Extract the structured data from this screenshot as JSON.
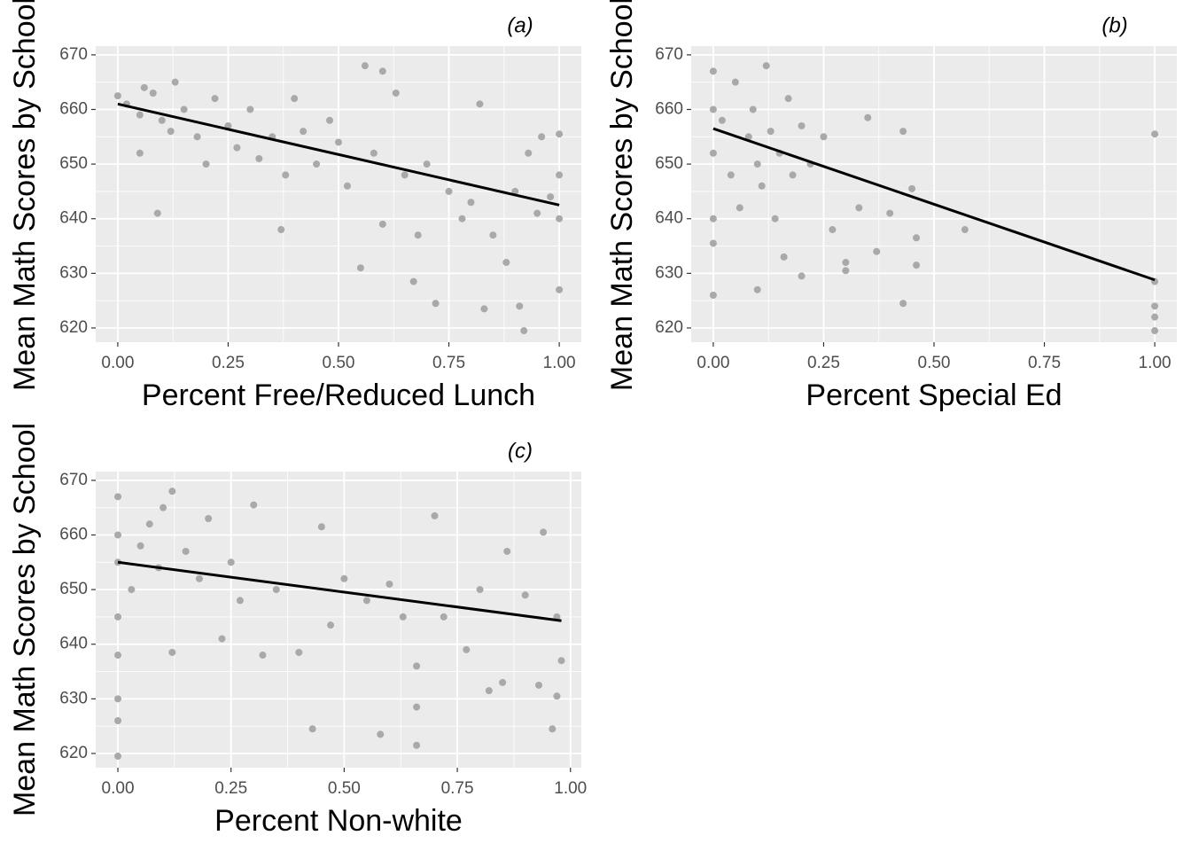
{
  "chart_data": [
    {
      "type": "scatter",
      "title": "(a)",
      "x_label": "Percent Free/Reduced Lunch",
      "y_label": "Mean Math Scores by School",
      "x": [
        0,
        0.02,
        0.05,
        0.06,
        0.08,
        0.05,
        0.09,
        0.1,
        0.12,
        0.13,
        0.15,
        0.18,
        0.2,
        0.22,
        0.25,
        0.27,
        0.3,
        0.32,
        0.35,
        0.37,
        0.38,
        0.4,
        0.42,
        0.45,
        0.48,
        0.5,
        0.52,
        0.55,
        0.56,
        0.58,
        0.6,
        0.6,
        0.63,
        0.65,
        0.67,
        0.68,
        0.7,
        0.72,
        0.75,
        0.78,
        0.8,
        0.82,
        0.83,
        0.85,
        0.88,
        0.9,
        0.91,
        0.92,
        0.93,
        0.95,
        0.96,
        0.98,
        1,
        1,
        1,
        1
      ],
      "values": [
        662.5,
        661,
        659,
        664,
        663,
        652,
        641,
        658,
        656,
        665,
        660,
        655,
        650,
        662,
        657,
        653,
        660,
        651,
        655,
        638,
        648,
        662,
        656,
        650,
        658,
        654,
        646,
        631,
        668,
        652,
        667,
        639,
        663,
        648,
        628.5,
        637,
        650,
        624.5,
        645,
        640,
        643,
        661,
        623.5,
        637,
        632,
        645,
        624,
        619.5,
        652,
        641,
        655,
        644,
        655.5,
        640,
        627,
        648
      ],
      "color": "#a9a9a9",
      "fit": {
        "x": [
          0,
          1
        ],
        "values": [
          661,
          642.5
        ],
        "color": "#000000"
      },
      "xlim": [
        -0.05,
        1.05
      ],
      "ylim": [
        617.4,
        671.6
      ],
      "xticks": [
        {
          "value": 0,
          "label": "0.00"
        },
        0.25,
        {
          "value": 0.5,
          "label": "0.50"
        },
        0.75,
        {
          "value": 1,
          "label": "1.00"
        }
      ],
      "yticks": [
        620,
        630,
        640,
        650,
        660,
        670
      ],
      "grid": true
    },
    {
      "type": "scatter",
      "title": "(b)",
      "x_label": "Percent Special Ed",
      "y_label": "Mean Math Scores by School",
      "x": [
        0,
        0,
        0,
        0,
        0,
        0,
        0.02,
        0.04,
        0.05,
        0.06,
        0.08,
        0.09,
        0.1,
        0.1,
        0.11,
        0.12,
        0.13,
        0.14,
        0.15,
        0.16,
        0.17,
        0.18,
        0.2,
        0.2,
        0.22,
        0.25,
        0.27,
        0.3,
        0.3,
        0.33,
        0.35,
        0.37,
        0.4,
        0.43,
        0.43,
        0.45,
        0.46,
        0.46,
        0.57,
        1,
        1,
        1,
        1,
        1
      ],
      "values": [
        667,
        660,
        652,
        640,
        635.5,
        626,
        658,
        648,
        665,
        642,
        655,
        660,
        627,
        650,
        646,
        668,
        656,
        640,
        652,
        633,
        662,
        648,
        629.5,
        657,
        650,
        655,
        638,
        632,
        630.5,
        642,
        658.5,
        634,
        641,
        656,
        624.5,
        645.5,
        631.5,
        636.5,
        638,
        655.5,
        628.5,
        624,
        622,
        619.5
      ],
      "color": "#a9a9a9",
      "fit": {
        "x": [
          0,
          1
        ],
        "values": [
          656.5,
          628.8
        ],
        "color": "#000000"
      },
      "xlim": [
        -0.05,
        1.05
      ],
      "ylim": [
        617.4,
        671.6
      ],
      "xticks": [
        {
          "value": 0,
          "label": "0.00"
        },
        0.25,
        {
          "value": 0.5,
          "label": "0.50"
        },
        0.75,
        {
          "value": 1,
          "label": "1.00"
        }
      ],
      "yticks": [
        620,
        630,
        640,
        650,
        660,
        670
      ],
      "grid": true
    },
    {
      "type": "scatter",
      "title": "(c)",
      "x_label": "Percent Non-white",
      "y_label": "Mean Math Scores by School",
      "x": [
        0,
        0,
        0,
        0,
        0,
        0,
        0,
        0,
        0.03,
        0.05,
        0.07,
        0.09,
        0.1,
        0.12,
        0.12,
        0.15,
        0.18,
        0.2,
        0.23,
        0.25,
        0.27,
        0.3,
        0.32,
        0.35,
        0.4,
        0.43,
        0.45,
        0.47,
        0.5,
        0.55,
        0.58,
        0.6,
        0.63,
        0.66,
        0.66,
        0.66,
        0.7,
        0.72,
        0.77,
        0.8,
        0.82,
        0.85,
        0.86,
        0.9,
        0.93,
        0.94,
        0.96,
        0.97,
        0.97,
        0.98
      ],
      "values": [
        667,
        660,
        655,
        645,
        638,
        630,
        626,
        619.5,
        650,
        658,
        662,
        654,
        665,
        668,
        638.5,
        657,
        652,
        663,
        641,
        655,
        648,
        665.5,
        638,
        650,
        638.5,
        624.5,
        661.5,
        643.5,
        652,
        648,
        623.5,
        651,
        645,
        636,
        628.5,
        621.5,
        663.5,
        645,
        639,
        650,
        631.5,
        633,
        657,
        649,
        632.5,
        660.5,
        624.5,
        630.5,
        645,
        637
      ],
      "color": "#a9a9a9",
      "fit": {
        "x": [
          0,
          0.98
        ],
        "values": [
          655,
          644.3
        ],
        "color": "#000000"
      },
      "xlim": [
        -0.049,
        1.024
      ],
      "ylim": [
        617.4,
        671.6
      ],
      "xticks": [
        {
          "value": 0,
          "label": "0.00"
        },
        0.25,
        {
          "value": 0.5,
          "label": "0.50"
        },
        0.75,
        {
          "value": 1,
          "label": "1.00"
        }
      ],
      "yticks": [
        620,
        630,
        640,
        650,
        660,
        670
      ],
      "grid": true
    }
  ]
}
